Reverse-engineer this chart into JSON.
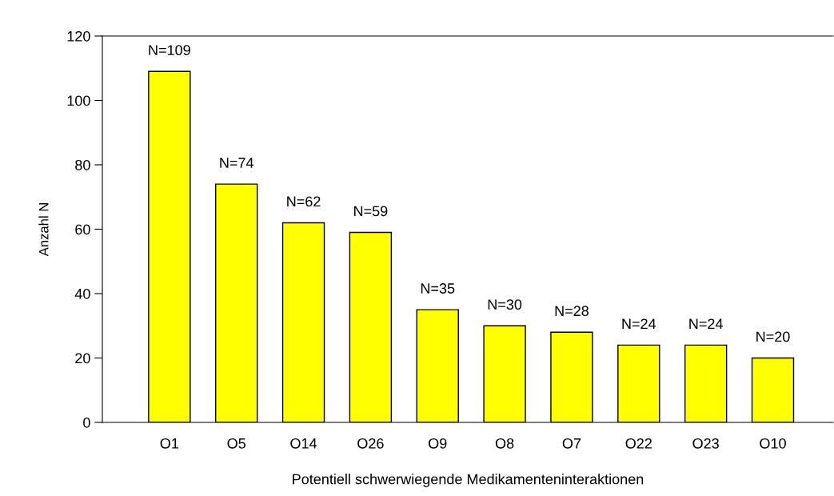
{
  "chart_data": {
    "type": "bar",
    "xlabel": "Potentiell schwerwiegende Medikamenteninteraktionen",
    "ylabel": "Anzahl N",
    "categories": [
      "O1",
      "O5",
      "O14",
      "O26",
      "O9",
      "O8",
      "O7",
      "O22",
      "O23",
      "O10"
    ],
    "values": [
      109,
      74,
      62,
      59,
      35,
      30,
      28,
      24,
      24,
      20
    ],
    "value_labels": [
      "N=109",
      "N=74",
      "N=62",
      "N=59",
      "N=35",
      "N=30",
      "N=28",
      "N=24",
      "N=24",
      "N=20"
    ],
    "color": "#ffff00",
    "ylim": [
      0,
      120
    ],
    "yticks": [
      0,
      20,
      40,
      60,
      80,
      100,
      120
    ],
    "grid": false,
    "legend": false
  }
}
